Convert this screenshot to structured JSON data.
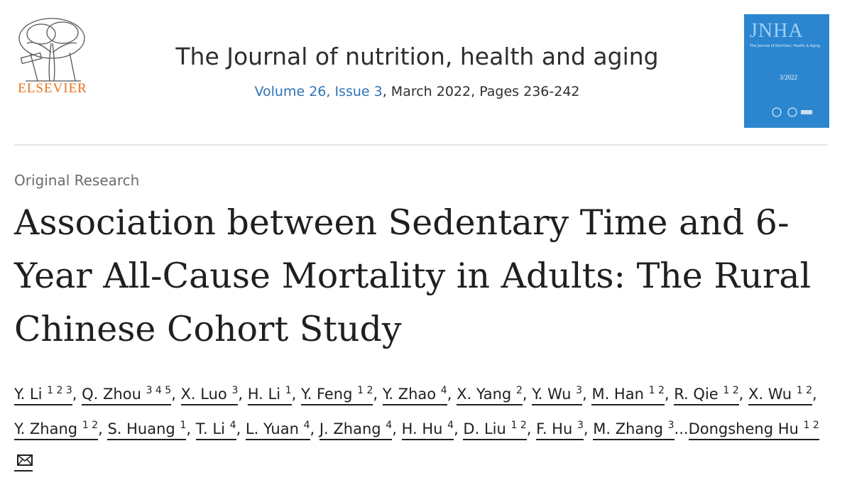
{
  "header": {
    "publisher": "ELSEVIER",
    "journal": "The Journal of nutrition, health and aging",
    "volume_link": "Volume 26, Issue 3",
    "issue_info": ", March 2022, Pages 236-242",
    "cover": {
      "acronym": "JNHA",
      "subtitle": "The Journal of Nutrition, Health & Aging",
      "issue": "3/2022"
    }
  },
  "article": {
    "type": "Original Research",
    "title": "Association between Sedentary Time and 6-Year All-Cause Mortality in Adults: The Rural Chinese Cohort Study",
    "separator": ", ",
    "authors": [
      {
        "name": "Y. Li",
        "sup": "1 2 3"
      },
      {
        "name": "Q. Zhou",
        "sup": "3 4 5"
      },
      {
        "name": "X. Luo",
        "sup": "3"
      },
      {
        "name": "H. Li",
        "sup": "1"
      },
      {
        "name": "Y. Feng",
        "sup": "1 2"
      },
      {
        "name": "Y. Zhao",
        "sup": "4"
      },
      {
        "name": "X. Yang",
        "sup": "2"
      },
      {
        "name": "Y. Wu",
        "sup": "3"
      },
      {
        "name": "M. Han",
        "sup": "1 2"
      },
      {
        "name": "R. Qie",
        "sup": "1 2"
      },
      {
        "name": "X. Wu",
        "sup": "1 2"
      },
      {
        "name": "Y. Zhang",
        "sup": "1 2"
      },
      {
        "name": "S. Huang",
        "sup": "1"
      },
      {
        "name": "T. Li",
        "sup": "4"
      },
      {
        "name": "L. Yuan",
        "sup": "4"
      },
      {
        "name": "J. Zhang",
        "sup": "4"
      },
      {
        "name": "H. Hu",
        "sup": "4"
      },
      {
        "name": "D. Liu",
        "sup": "1 2"
      },
      {
        "name": "F. Hu",
        "sup": "3"
      },
      {
        "name": "M. Zhang",
        "sup": "3"
      }
    ],
    "ellipsis": "...",
    "last_author": {
      "name": "Dongsheng Hu",
      "sup": "1 2"
    }
  }
}
